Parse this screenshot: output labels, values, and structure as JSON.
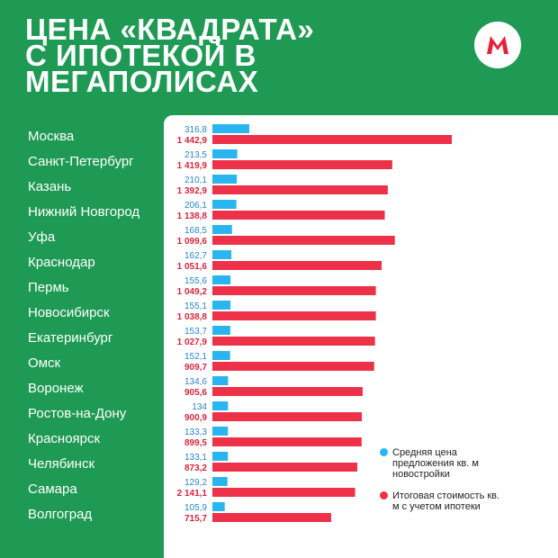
{
  "header": {
    "title_lines": [
      "ЦЕНА «КВАДРАТА»",
      "С ИПОТЕКОЙ В",
      "МЕГАПОЛИСАХ"
    ]
  },
  "logo": {
    "icon": "m-logo-icon",
    "color": "#e8203a"
  },
  "colors": {
    "background": "#1f9a54",
    "series_a": "#29b6f0",
    "series_b": "#ec3149",
    "label_a": "#2a86c8",
    "label_b": "#d9243d"
  },
  "legend": {
    "items": [
      {
        "text": "Средняя цена предложения кв. м новостройки"
      },
      {
        "text": "Итоговая стоимость кв. м с учетом ипотеки"
      }
    ]
  },
  "chart_data": {
    "type": "bar",
    "orientation": "horizontal",
    "categories": [
      "Москва",
      "Санкт-Петербург",
      "Казань",
      "Нижний Новгород",
      "Уфа",
      "Краснодар",
      "Пермь",
      "Новосибирск",
      "Екатеринбург",
      "Омск",
      "Воронеж",
      "Ростов-на-Дону",
      "Красноярск",
      "Челябинск",
      "Самара",
      "Волгоград"
    ],
    "series": [
      {
        "name": "Средняя цена предложения кв. м новостройки",
        "values": [
          316.8,
          213.5,
          210.1,
          206.1,
          168.5,
          162.7,
          155.6,
          155.1,
          153.7,
          152.1,
          134.6,
          134,
          133.3,
          133.1,
          129.2,
          105.9
        ],
        "labels": [
          "316,8",
          "213,5",
          "210,1",
          "206,1",
          "168,5",
          "162,7",
          "155,6",
          "155,1",
          "153,7",
          "152,1",
          "134,6",
          "134",
          "133,3",
          "133,1",
          "129,2",
          "105,9"
        ]
      },
      {
        "name": "Итоговая стоимость кв. м с учетом ипотеки",
        "values": [
          1442.9,
          1419.9,
          1392.9,
          1138.8,
          1099.6,
          1051.6,
          1049.2,
          1038.8,
          1027.9,
          909.7,
          905.6,
          900.9,
          899.5,
          873.2,
          2141.1,
          715.7
        ],
        "labels": [
          "1 442,9",
          "1 419,9",
          "1 392,9",
          "1 138,8",
          "1 099,6",
          "1 051,6",
          "1 049,2",
          "1 038,8",
          "1 027,9",
          "909,7",
          "905,6",
          "900,9",
          "899,5",
          "873,2",
          "2 141,1",
          "715,7"
        ],
        "display_lengths": [
          1442.9,
          1084,
          1057,
          1038.8,
          1099.6,
          1020,
          985,
          985,
          980,
          975,
          905.6,
          900.9,
          899.5,
          873.2,
          860,
          715.7
        ]
      }
    ],
    "legend_position": "right",
    "grid": false
  }
}
